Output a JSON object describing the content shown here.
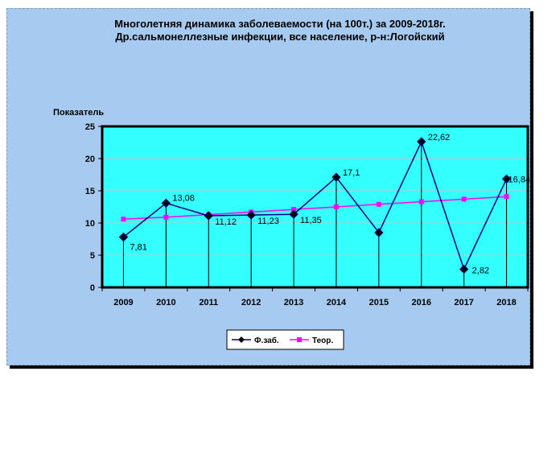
{
  "chart_data": {
    "type": "line",
    "title": "Многолетняя динамика заболеваемости (на 100т.)  за 2009-2018г.",
    "subtitle": "Др.сальмонеллезные инфекции, все население, р-н:Логойский",
    "xlabel": "",
    "ylabel": "Показатель",
    "ylim": [
      0,
      25
    ],
    "yticks": [
      0,
      5,
      10,
      15,
      20,
      25
    ],
    "grid": true,
    "legend": "bottom",
    "categories": [
      "2009",
      "2010",
      "2011",
      "2012",
      "2013",
      "2014",
      "2015",
      "2016",
      "2017",
      "2018"
    ],
    "series": [
      {
        "name": "Ф.заб.",
        "values": [
          7.81,
          13.08,
          11.12,
          11.23,
          11.35,
          17.1,
          8.5,
          22.62,
          2.82,
          16.84
        ],
        "labels": [
          "7,81",
          "13,08",
          "11,12",
          "11,23",
          "11,35",
          "17,1",
          "",
          "22,62",
          "2,82",
          "16,84"
        ],
        "color": "#000080",
        "marker": "diamond"
      },
      {
        "name": "Теор.",
        "values": [
          10.6,
          10.9,
          11.3,
          11.7,
          12.1,
          12.5,
          12.9,
          13.3,
          13.7,
          14.1
        ],
        "color": "#ff00ff",
        "marker": "square"
      }
    ],
    "colors": {
      "plot_bg": "#33ffff",
      "frame_bg": "#a6caf0",
      "gridline": "#c0c0c0"
    }
  }
}
